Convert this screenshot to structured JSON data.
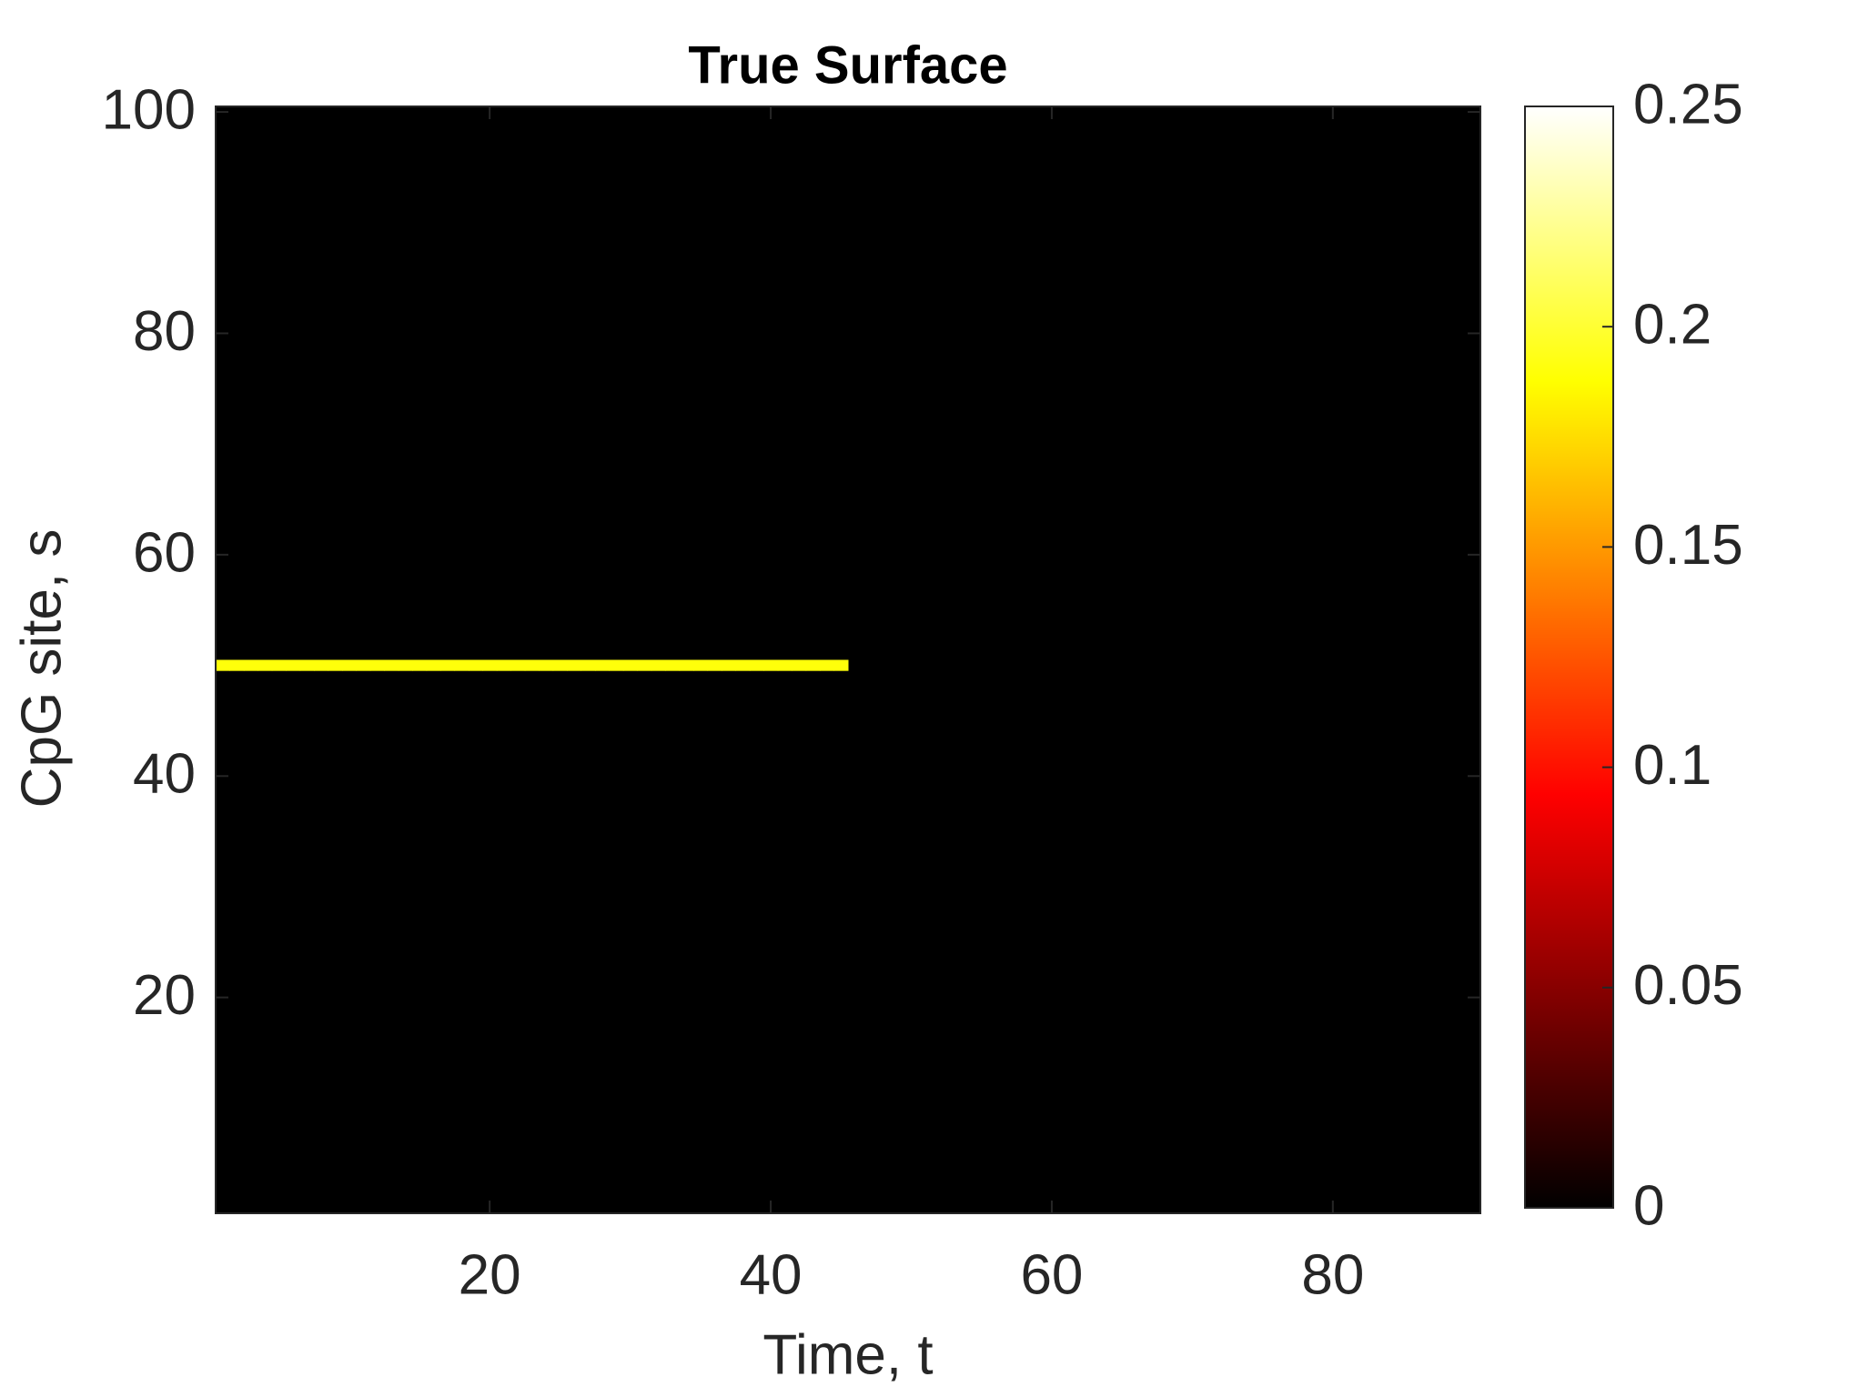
{
  "chart_data": {
    "type": "heatmap",
    "title": "True Surface",
    "x_label": "Time, t",
    "y_label": "CpG site, s",
    "xlim": [
      0.5,
      90.5
    ],
    "ylim": [
      0.5,
      100.5
    ],
    "xticks": [
      20,
      40,
      60,
      80
    ],
    "yticks": [
      20,
      40,
      60,
      80,
      100
    ],
    "colormap": "hot",
    "clim": [
      0,
      0.25
    ],
    "cticks": [
      0,
      0.05,
      0.1,
      0.15,
      0.2,
      0.25
    ],
    "fill_value": 0,
    "rows": [
      {
        "y": 50,
        "x": [
          1,
          2,
          3,
          4,
          5,
          6,
          7,
          8,
          9,
          10,
          11,
          12,
          13,
          14,
          15,
          16,
          17,
          18,
          19,
          20,
          21,
          22,
          23,
          24,
          25,
          26,
          27,
          28,
          29,
          30,
          31,
          32,
          33,
          34,
          35,
          36,
          37,
          38,
          39,
          40,
          41,
          42,
          43,
          44,
          45
        ],
        "values": [
          0.19,
          0.19,
          0.19,
          0.19,
          0.19,
          0.19,
          0.19,
          0.19,
          0.19,
          0.19,
          0.19,
          0.19,
          0.19,
          0.19,
          0.19,
          0.19,
          0.19,
          0.19,
          0.19,
          0.19,
          0.19,
          0.19,
          0.19,
          0.19,
          0.19,
          0.19,
          0.19,
          0.19,
          0.19,
          0.19,
          0.19,
          0.19,
          0.19,
          0.19,
          0.19,
          0.19,
          0.19,
          0.19,
          0.19,
          0.19,
          0.19,
          0.19,
          0.19,
          0.19,
          0.19
        ]
      }
    ]
  }
}
